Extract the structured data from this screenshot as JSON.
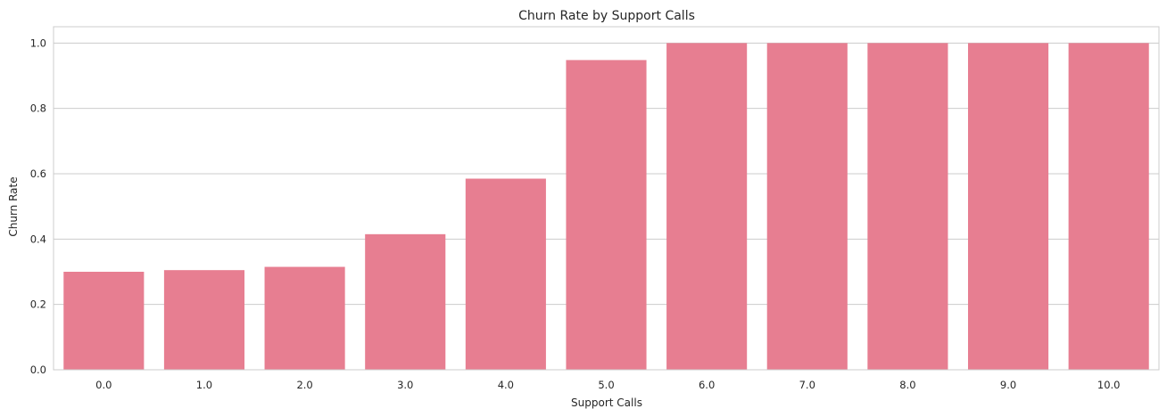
{
  "chart_data": {
    "type": "bar",
    "title": "Churn Rate by Support Calls",
    "xlabel": "Support Calls",
    "ylabel": "Churn Rate",
    "categories": [
      "0.0",
      "1.0",
      "2.0",
      "3.0",
      "4.0",
      "5.0",
      "6.0",
      "7.0",
      "8.0",
      "9.0",
      "10.0"
    ],
    "values": [
      0.3,
      0.305,
      0.315,
      0.415,
      0.585,
      0.948,
      1.0,
      1.0,
      1.0,
      1.0,
      1.0
    ],
    "ylim": [
      0,
      1.05
    ],
    "yticks": [
      "0.0",
      "0.2",
      "0.4",
      "0.6",
      "0.8",
      "1.0"
    ],
    "ytick_values": [
      0,
      0.2,
      0.4,
      0.6,
      0.8,
      1.0
    ],
    "grid": "horizontal",
    "bar_color": "#e77e91",
    "grid_color": "#cccccc",
    "background": "#ffffff"
  }
}
